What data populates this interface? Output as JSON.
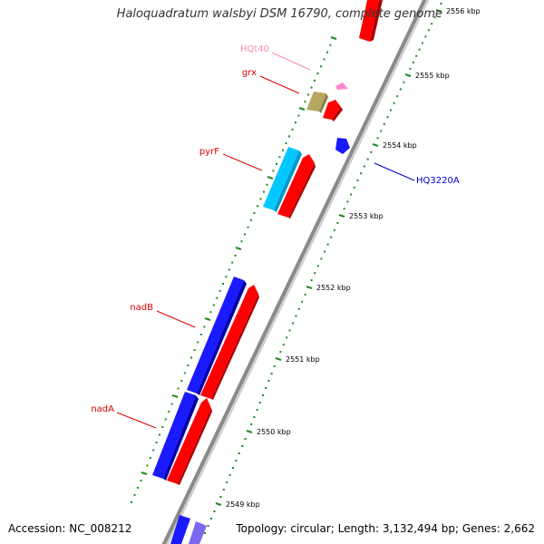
{
  "title": "Haloquadratum walsbyi DSM 16790, complete genome",
  "accession": "Accession: NC_008212",
  "summary": "Topology: circular; Length: 3,132,494 bp; Genes: 2,662",
  "colors": {
    "backbone": "#8a8a8a",
    "tick": "#1f8a1f",
    "forward_gene": "#ff0000",
    "reverse_gene": "#1a1aff",
    "rrna": "#00c8ff",
    "trna": "#ff88cc",
    "other": "#b5a860",
    "purple": "#7b68ee"
  },
  "ruler": [
    {
      "label": "2556 kbp"
    },
    {
      "label": "2555 kbp"
    },
    {
      "label": "2554 kbp"
    },
    {
      "label": "2553 kbp"
    },
    {
      "label": "2552 kbp"
    },
    {
      "label": "2551 kbp"
    },
    {
      "label": "2550 kbp"
    },
    {
      "label": "2549 kbp"
    }
  ],
  "gene_labels": [
    {
      "name": "HQt40",
      "color": "#ff88bb"
    },
    {
      "name": "grx",
      "color": "#dd0000"
    },
    {
      "name": "pyrF",
      "color": "#dd0000"
    },
    {
      "name": "nadB",
      "color": "#dd0000"
    },
    {
      "name": "nadA",
      "color": "#dd0000"
    },
    {
      "name": "HQ3220A",
      "color": "#0000cc"
    }
  ]
}
